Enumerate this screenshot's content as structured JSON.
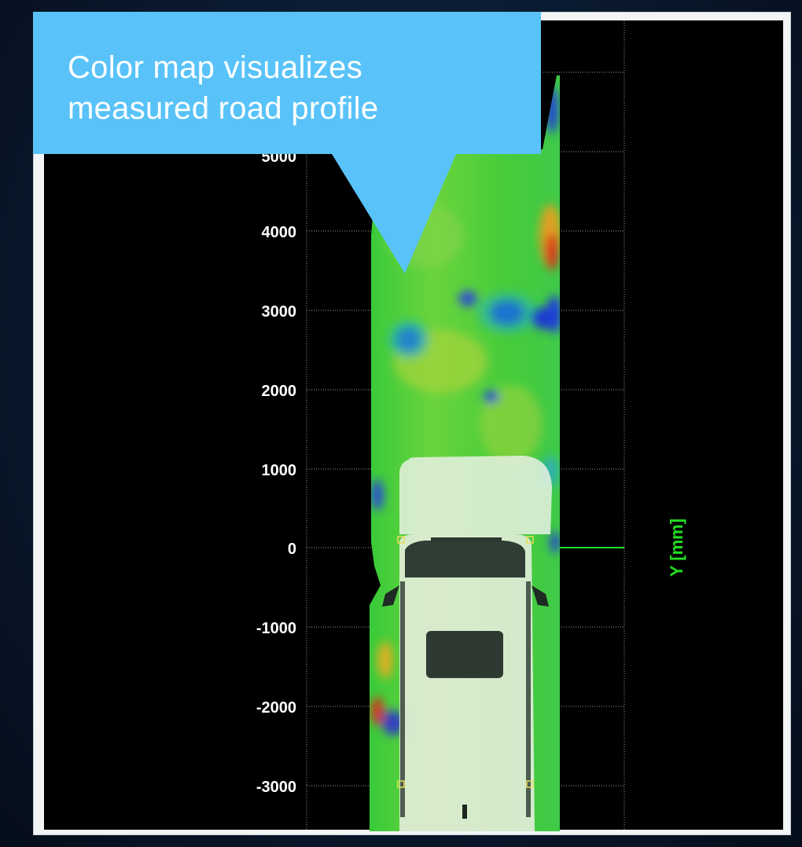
{
  "callout": {
    "line1": "Color map visualizes",
    "line2": "measured road profile",
    "color": "#59c3f9"
  },
  "axis": {
    "label": "Y [mm]",
    "label_color": "#22dd22",
    "tick_labels": [
      "4000",
      "3000",
      "2000",
      "1000",
      "0",
      "-1000",
      "-2000",
      "-3000"
    ],
    "tick_values": [
      4000,
      3000,
      2000,
      1000,
      0,
      -1000,
      -2000,
      -3000
    ]
  },
  "colors": {
    "background": "#000000",
    "road_base": "#3fd13a",
    "high": "#d61f14",
    "low": "#1a3fd8",
    "vehicle": "#e9f1e4"
  },
  "icons": {
    "vehicle": "car-top-view-icon"
  }
}
